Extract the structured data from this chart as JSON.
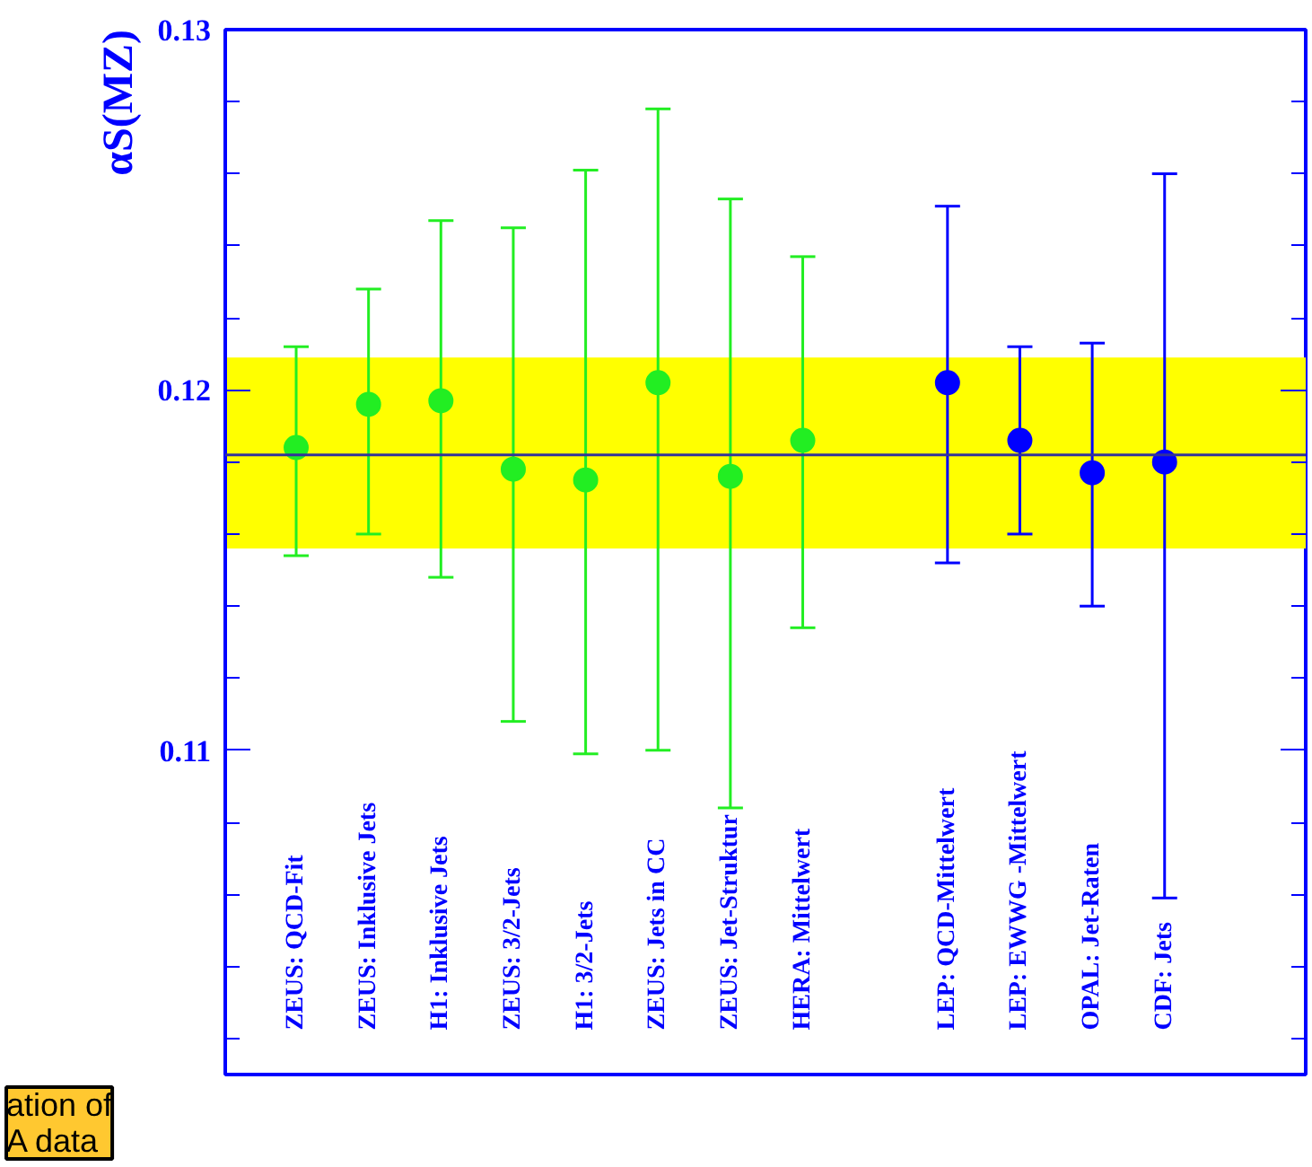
{
  "chart_data": {
    "type": "scatter",
    "ylabel": "αS(MZ)",
    "categories": [
      "ZEUS: QCD-Fit",
      "ZEUS: Inklusive Jets",
      "H1: Inklusive Jets",
      "ZEUS: 3/2-Jets",
      "H1: 3/2-Jets",
      "ZEUS: Jets in CC",
      "ZEUS: Jet-Struktur",
      "HERA: Mittelwert",
      null,
      "LEP: QCD-Mittelwert",
      "LEP: EWWG -Mittelwert",
      "OPAL: Jet-Raten",
      "CDF: Jets"
    ],
    "series": [
      {
        "color": "#22ee22",
        "values": [
          0.1184,
          0.1196,
          0.1197,
          0.1178,
          0.1175,
          0.1202,
          0.1176,
          0.1186,
          null,
          null,
          null,
          null,
          null
        ],
        "errors": [
          [
            0.1154,
            0.1212
          ],
          [
            0.116,
            0.1228
          ],
          [
            0.1148,
            0.1247
          ],
          [
            0.1108,
            0.1245
          ],
          [
            0.1099,
            0.1261
          ],
          [
            0.11,
            0.1278
          ],
          [
            0.1084,
            0.1253
          ],
          [
            0.1134,
            0.1237
          ],
          null,
          null,
          null,
          null,
          null
        ]
      },
      {
        "color": "#0000ff",
        "values": [
          null,
          null,
          null,
          null,
          null,
          null,
          null,
          null,
          null,
          0.1202,
          0.1186,
          0.1177,
          0.118
        ],
        "errors": [
          null,
          null,
          null,
          null,
          null,
          null,
          null,
          null,
          null,
          [
            0.1152,
            0.1251
          ],
          [
            0.116,
            0.1212
          ],
          [
            0.114,
            0.1213
          ],
          [
            0.1059,
            0.126
          ]
        ]
      }
    ],
    "ylim": [
      0.101,
      0.13
    ],
    "yticks": [
      {
        "value": 0.102,
        "label": null
      },
      {
        "value": 0.104,
        "label": null
      },
      {
        "value": 0.106,
        "label": null
      },
      {
        "value": 0.108,
        "label": null
      },
      0.11,
      {
        "value": 0.112,
        "label": null
      },
      {
        "value": 0.114,
        "label": null
      },
      {
        "value": 0.116,
        "label": null
      },
      {
        "value": 0.118,
        "label": null
      },
      0.12,
      {
        "value": 0.122,
        "label": null
      },
      {
        "value": 0.124,
        "label": null
      },
      {
        "value": 0.126,
        "label": null
      },
      {
        "value": 0.128,
        "label": null
      },
      0.13
    ],
    "ref_lines": [
      {
        "axis": "y",
        "value": 0.1182,
        "color": "#333399"
      }
    ],
    "bands": [
      {
        "axis": "y",
        "from": 0.1156,
        "to": 0.1209,
        "color": "#ffff00"
      }
    ],
    "marker": "circle",
    "grid": false,
    "annotations": [
      "ation of\nA data"
    ]
  }
}
